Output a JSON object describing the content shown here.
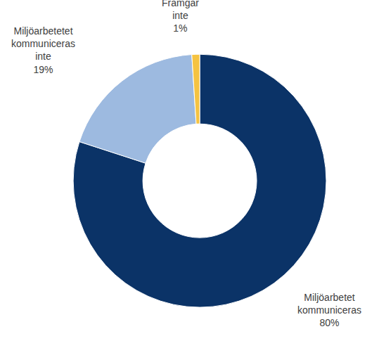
{
  "chart_data": {
    "type": "pie",
    "categories": [
      "Miljöarbetet kommuniceras",
      "Miljöarbetetet kommuniceras inte",
      "Framgår inte"
    ],
    "values": [
      80,
      19,
      1
    ],
    "value_labels": [
      "80%",
      "19%",
      "1%"
    ],
    "colors": [
      "#0b3367",
      "#9dbae0",
      "#f5c342"
    ],
    "data_labels": true
  }
}
